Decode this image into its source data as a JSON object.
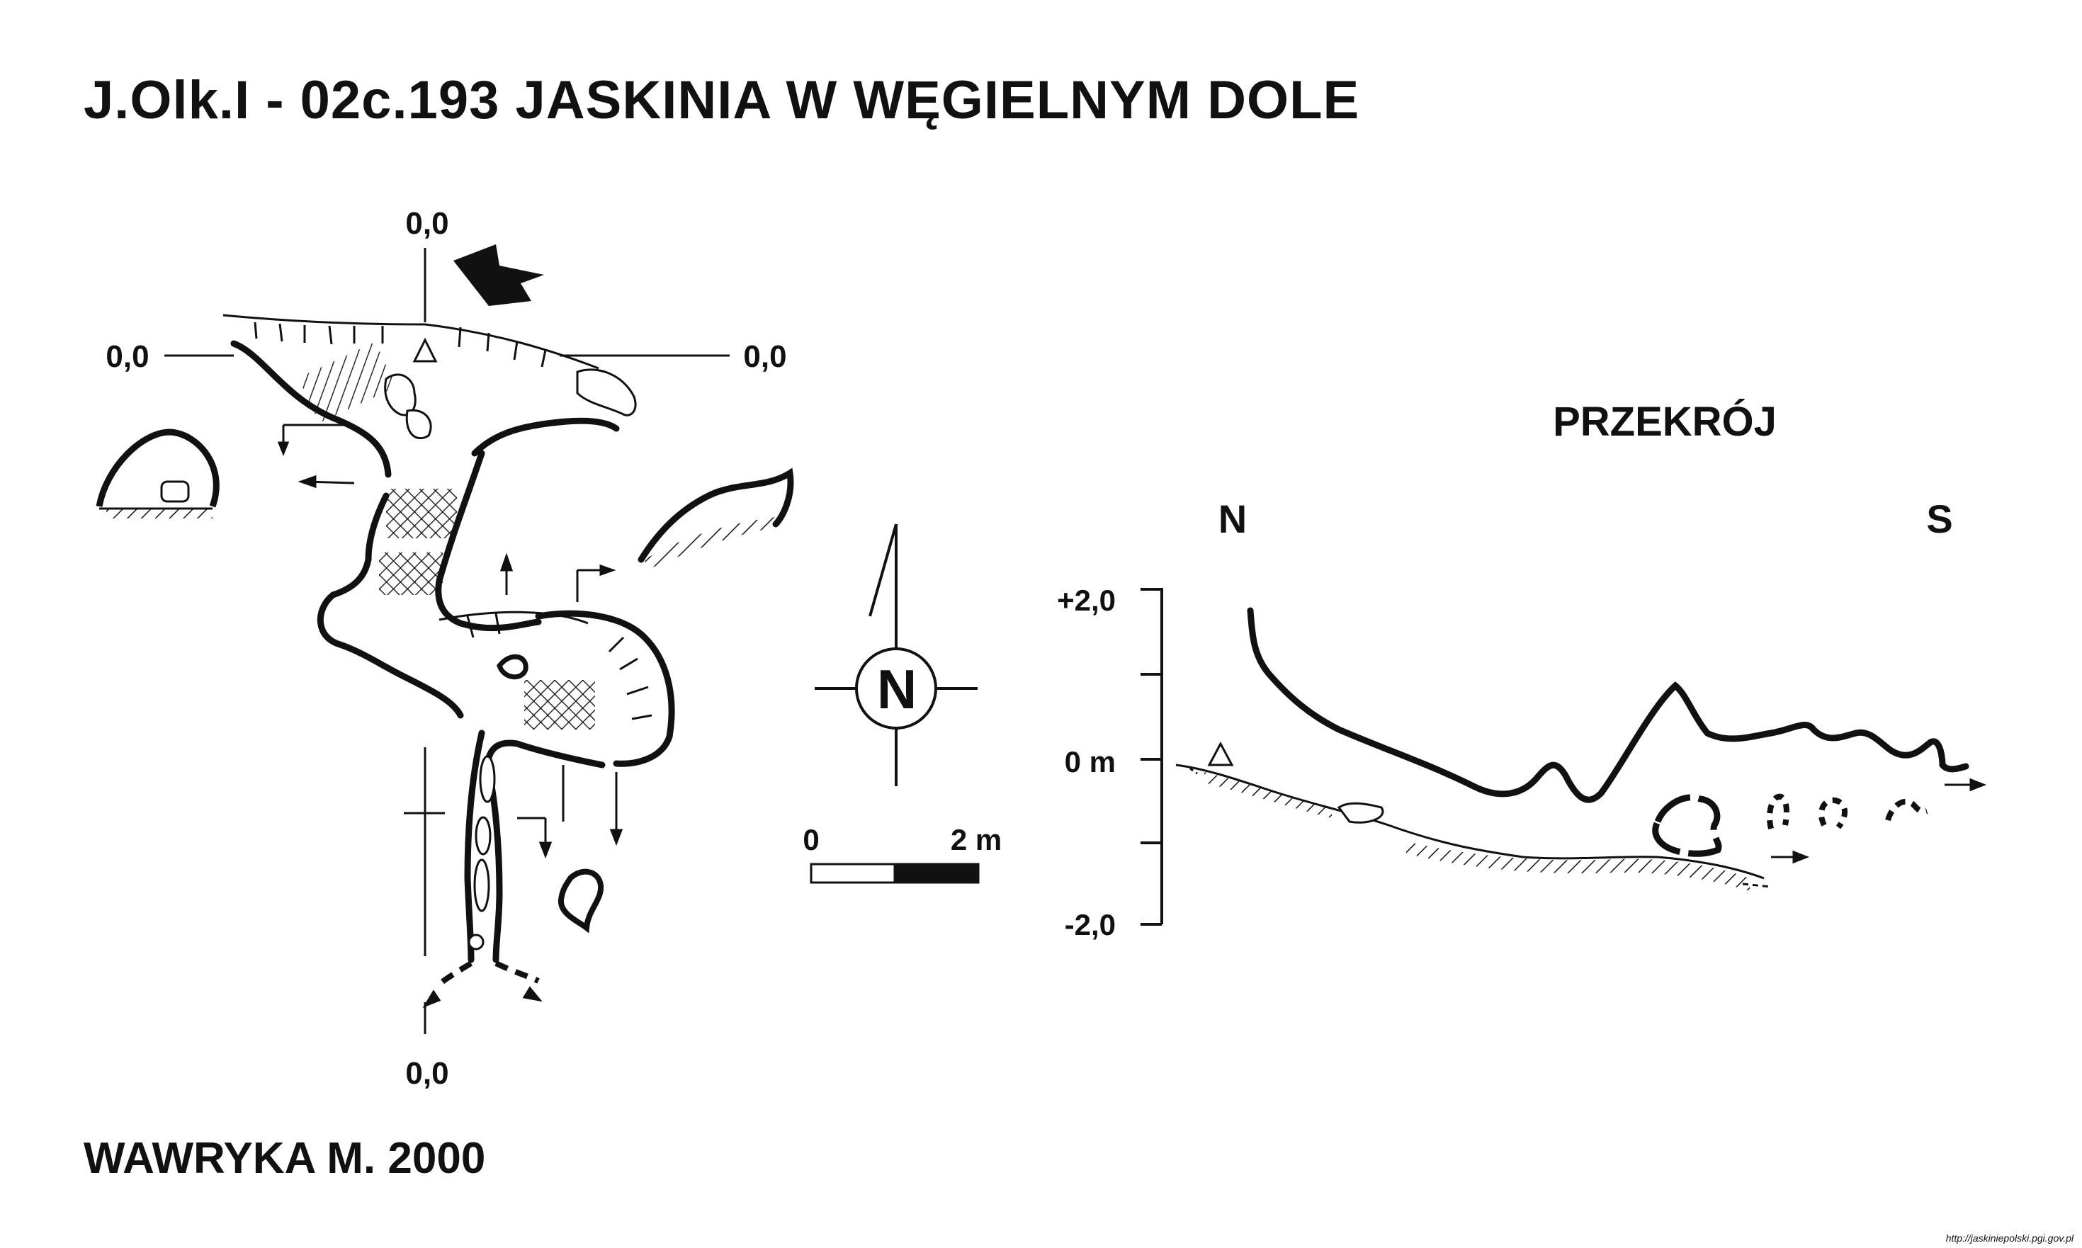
{
  "title": "J.Olk.I - 02c.193  JASKINIA W WĘGIELNYM DOLE",
  "author": "WAWRYKA M. 2000",
  "credit": "http://jaskiniepolski.pgi.gov.pl",
  "plan": {
    "label_top": "0,0",
    "label_left": "0,0",
    "label_right": "0,0",
    "label_bottom": "0,0"
  },
  "north_arrow": {
    "letter": "N"
  },
  "scale_bar": {
    "label_start": "0",
    "label_end": "2 m"
  },
  "section": {
    "title": "PRZEKRÓJ",
    "left_dir": "N",
    "right_dir": "S",
    "axis_labels": [
      "+2,0",
      "0 m",
      "-2,0"
    ]
  },
  "colors": {
    "ink": "#111111",
    "background": "#ffffff"
  }
}
